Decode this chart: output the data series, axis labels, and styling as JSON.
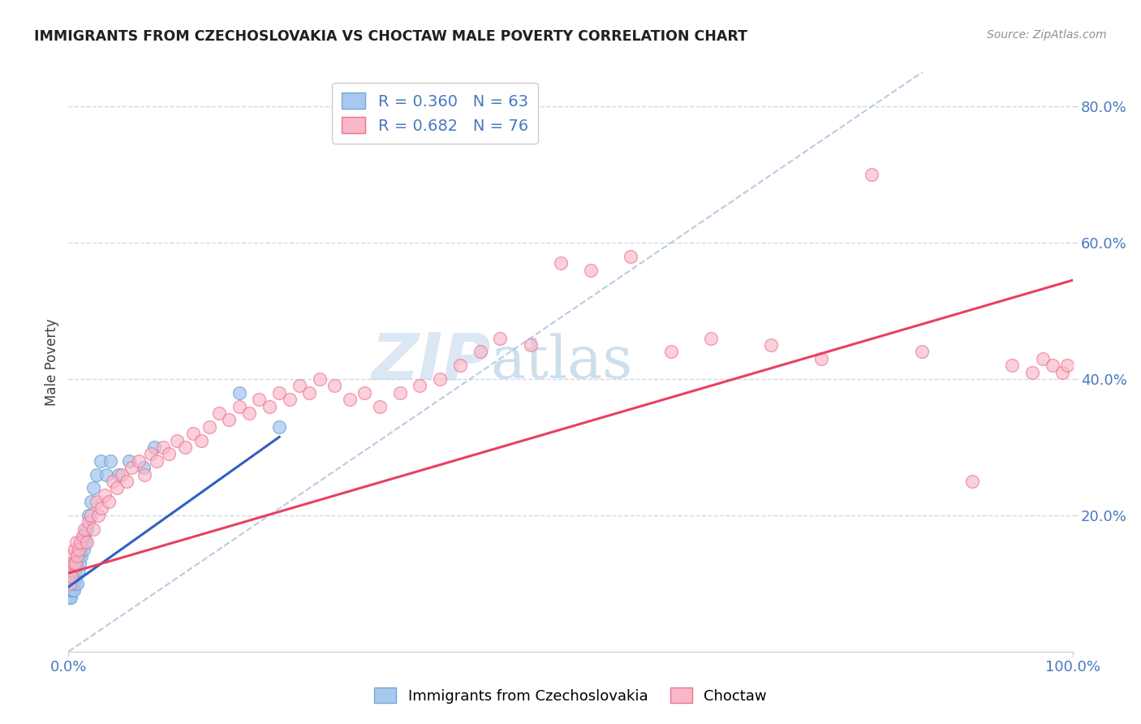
{
  "title": "IMMIGRANTS FROM CZECHOSLOVAKIA VS CHOCTAW MALE POVERTY CORRELATION CHART",
  "source": "Source: ZipAtlas.com",
  "ylabel": "Male Poverty",
  "xlim": [
    0.0,
    1.0
  ],
  "ylim": [
    0.0,
    0.85
  ],
  "ytick_labels": [
    "20.0%",
    "40.0%",
    "60.0%",
    "80.0%"
  ],
  "ytick_values": [
    0.2,
    0.4,
    0.6,
    0.8
  ],
  "watermark_zip": "ZIP",
  "watermark_atlas": "atlas",
  "blue_color": "#6fa8d4",
  "pink_color": "#f07090",
  "blue_fill": "#a8c8f0",
  "pink_fill": "#f8b8c8",
  "trendline_blue_color": "#3060c0",
  "trendline_pink_color": "#e84060",
  "diagonal_color": "#b8cce0",
  "grid_color": "#d0d8e8",
  "title_color": "#202020",
  "source_color": "#909090",
  "axis_label_color": "#404040",
  "tick_label_color": "#4878c0",
  "blue_R": 0.36,
  "blue_N": 63,
  "pink_R": 0.682,
  "pink_N": 76,
  "blue_scatter_x": [
    0.0005,
    0.0006,
    0.0007,
    0.0008,
    0.0009,
    0.001,
    0.001,
    0.001,
    0.001,
    0.001,
    0.0012,
    0.0013,
    0.0014,
    0.0015,
    0.0016,
    0.0018,
    0.002,
    0.002,
    0.002,
    0.002,
    0.0022,
    0.0024,
    0.0025,
    0.0026,
    0.003,
    0.003,
    0.003,
    0.003,
    0.0035,
    0.004,
    0.004,
    0.004,
    0.0045,
    0.005,
    0.005,
    0.006,
    0.006,
    0.007,
    0.008,
    0.009,
    0.01,
    0.01,
    0.011,
    0.012,
    0.013,
    0.014,
    0.015,
    0.016,
    0.017,
    0.018,
    0.02,
    0.022,
    0.025,
    0.028,
    0.032,
    0.038,
    0.042,
    0.05,
    0.06,
    0.075,
    0.085,
    0.21,
    0.17
  ],
  "blue_scatter_y": [
    0.09,
    0.11,
    0.08,
    0.1,
    0.12,
    0.09,
    0.11,
    0.1,
    0.08,
    0.13,
    0.1,
    0.09,
    0.11,
    0.08,
    0.1,
    0.12,
    0.09,
    0.11,
    0.1,
    0.13,
    0.08,
    0.1,
    0.11,
    0.09,
    0.1,
    0.12,
    0.09,
    0.11,
    0.1,
    0.09,
    0.11,
    0.12,
    0.1,
    0.11,
    0.09,
    0.1,
    0.12,
    0.11,
    0.13,
    0.1,
    0.12,
    0.14,
    0.13,
    0.15,
    0.14,
    0.16,
    0.15,
    0.17,
    0.16,
    0.18,
    0.2,
    0.22,
    0.24,
    0.26,
    0.28,
    0.26,
    0.28,
    0.26,
    0.28,
    0.27,
    0.3,
    0.33,
    0.38
  ],
  "pink_scatter_x": [
    0.001,
    0.002,
    0.003,
    0.004,
    0.005,
    0.006,
    0.007,
    0.008,
    0.009,
    0.01,
    0.012,
    0.014,
    0.016,
    0.018,
    0.02,
    0.022,
    0.025,
    0.028,
    0.03,
    0.033,
    0.036,
    0.04,
    0.044,
    0.048,
    0.053,
    0.058,
    0.063,
    0.07,
    0.076,
    0.082,
    0.088,
    0.094,
    0.1,
    0.108,
    0.116,
    0.124,
    0.132,
    0.14,
    0.15,
    0.16,
    0.17,
    0.18,
    0.19,
    0.2,
    0.21,
    0.22,
    0.23,
    0.24,
    0.25,
    0.265,
    0.28,
    0.295,
    0.31,
    0.33,
    0.35,
    0.37,
    0.39,
    0.41,
    0.43,
    0.46,
    0.49,
    0.52,
    0.56,
    0.6,
    0.64,
    0.7,
    0.75,
    0.8,
    0.85,
    0.9,
    0.94,
    0.96,
    0.97,
    0.98,
    0.99,
    0.995
  ],
  "pink_scatter_y": [
    0.1,
    0.12,
    0.11,
    0.14,
    0.13,
    0.15,
    0.13,
    0.16,
    0.14,
    0.15,
    0.16,
    0.17,
    0.18,
    0.16,
    0.19,
    0.2,
    0.18,
    0.22,
    0.2,
    0.21,
    0.23,
    0.22,
    0.25,
    0.24,
    0.26,
    0.25,
    0.27,
    0.28,
    0.26,
    0.29,
    0.28,
    0.3,
    0.29,
    0.31,
    0.3,
    0.32,
    0.31,
    0.33,
    0.35,
    0.34,
    0.36,
    0.35,
    0.37,
    0.36,
    0.38,
    0.37,
    0.39,
    0.38,
    0.4,
    0.39,
    0.37,
    0.38,
    0.36,
    0.38,
    0.39,
    0.4,
    0.42,
    0.44,
    0.46,
    0.45,
    0.57,
    0.56,
    0.58,
    0.44,
    0.46,
    0.45,
    0.43,
    0.7,
    0.44,
    0.25,
    0.42,
    0.41,
    0.43,
    0.42,
    0.41,
    0.42
  ],
  "blue_trendline_x": [
    0.0,
    0.21
  ],
  "blue_trendline_y": [
    0.095,
    0.315
  ],
  "pink_trendline_x": [
    0.0,
    1.0
  ],
  "pink_trendline_y": [
    0.115,
    0.545
  ]
}
